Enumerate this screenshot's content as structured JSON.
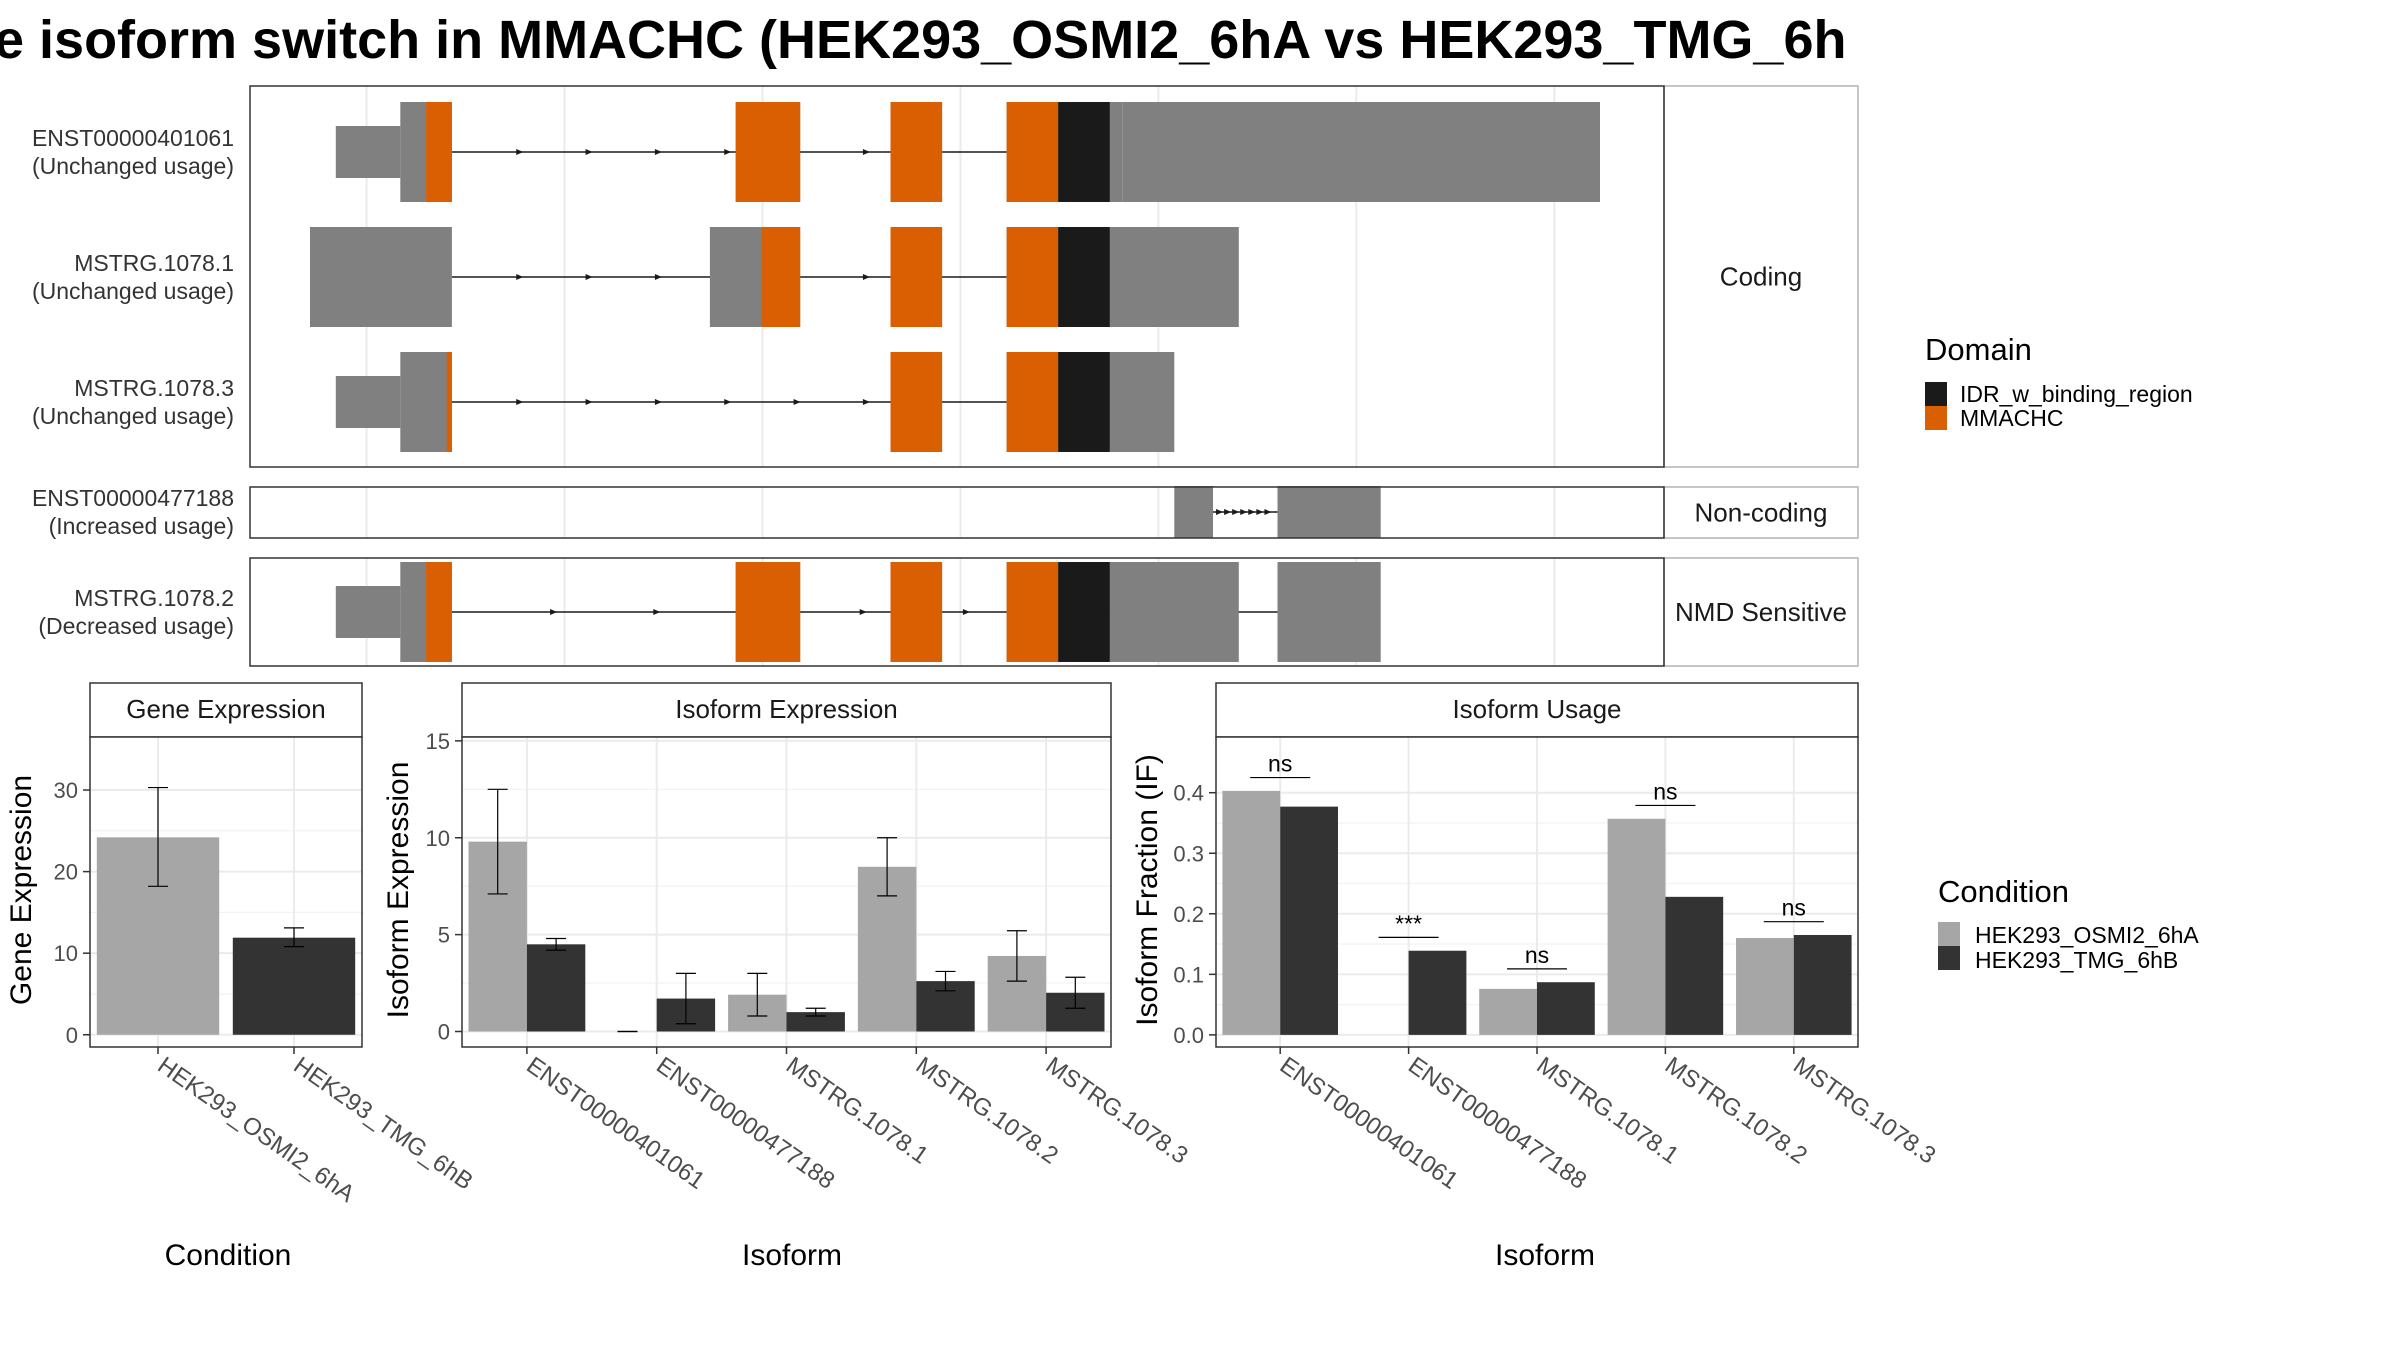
{
  "title": "e isoform switch in MMACHC (HEK293_OSMI2_6hA vs HEK293_TMG_6h",
  "colors": {
    "exon": "#808080",
    "mmachc": "#D95F02",
    "idr": "#1A1A1A",
    "cond1": "#A6A6A6",
    "cond2": "#333333",
    "strip_bg": "#FFFFFF",
    "grid": "#EBEBEB"
  },
  "structure_panel": {
    "x_domain": [
      0,
      100
    ],
    "rows": [
      {
        "id": "ENST00000401061",
        "usage": "(Unchanged usage)",
        "group": "Coding",
        "exons": [
          [
            2,
            7,
            0
          ],
          [
            7,
            9,
            1
          ],
          [
            9,
            11,
            1
          ],
          [
            33,
            38,
            1
          ],
          [
            45,
            49,
            1
          ],
          [
            54,
            58,
            1
          ],
          [
            58,
            62,
            1
          ],
          [
            62,
            63,
            1
          ],
          [
            63,
            100,
            1
          ]
        ],
        "domains": [
          [
            9,
            11,
            "mmachc"
          ],
          [
            33,
            38,
            "mmachc"
          ],
          [
            45,
            49,
            "mmachc"
          ],
          [
            54,
            58,
            "mmachc"
          ],
          [
            58,
            62,
            "idr"
          ]
        ],
        "intron_from": 11,
        "intron_to": 54
      },
      {
        "id": "MSTRG.1078.1",
        "usage": "(Unchanged usage)",
        "group": "Coding",
        "exons": [
          [
            0,
            11,
            1
          ],
          [
            31,
            35,
            1
          ],
          [
            35,
            38,
            1
          ],
          [
            45,
            49,
            1
          ],
          [
            54,
            58,
            1
          ],
          [
            58,
            62,
            1
          ],
          [
            62,
            72,
            1
          ]
        ],
        "domains": [
          [
            35,
            38,
            "mmachc"
          ],
          [
            45,
            49,
            "mmachc"
          ],
          [
            54,
            58,
            "mmachc"
          ],
          [
            58,
            62,
            "idr"
          ]
        ],
        "intron_from": 11,
        "intron_to": 54
      },
      {
        "id": "MSTRG.1078.3",
        "usage": "(Unchanged usage)",
        "group": "Coding",
        "exons": [
          [
            2,
            7,
            0
          ],
          [
            7,
            11,
            1
          ],
          [
            45,
            49,
            1
          ],
          [
            54,
            58,
            1
          ],
          [
            58,
            62,
            1
          ],
          [
            62,
            67,
            1
          ]
        ],
        "domains": [
          [
            10.6,
            11,
            "mmachc"
          ],
          [
            45,
            49,
            "mmachc"
          ],
          [
            54,
            58,
            "mmachc"
          ],
          [
            58,
            62,
            "idr"
          ]
        ],
        "intron_from": 11,
        "intron_to": 54
      },
      {
        "id": "ENST00000477188",
        "usage": "(Increased usage)",
        "group": "Non-coding",
        "exons": [
          [
            67,
            70,
            0
          ],
          [
            75,
            83,
            0
          ]
        ],
        "domains": [],
        "intron_from": 70,
        "intron_to": 75
      },
      {
        "id": "MSTRG.1078.2",
        "usage": "(Decreased usage)",
        "group": "NMD Sensitive",
        "exons": [
          [
            2,
            7,
            0
          ],
          [
            7,
            9,
            1
          ],
          [
            9,
            11,
            1
          ],
          [
            33,
            38,
            1
          ],
          [
            45,
            49,
            1
          ],
          [
            54,
            58,
            1
          ],
          [
            58,
            62,
            1
          ],
          [
            62,
            72,
            1
          ],
          [
            75,
            83,
            1
          ]
        ],
        "domains": [
          [
            9,
            11,
            "mmachc"
          ],
          [
            33,
            38,
            "mmachc"
          ],
          [
            45,
            49,
            "mmachc"
          ],
          [
            54,
            58,
            "mmachc"
          ],
          [
            58,
            62,
            "idr"
          ]
        ],
        "intron_from": 11,
        "intron_to": 75
      }
    ],
    "groups": [
      "Coding",
      "Non-coding",
      "NMD Sensitive"
    ]
  },
  "domain_legend": {
    "title": "Domain",
    "items": [
      {
        "label": "IDR_w_binding_region",
        "color_key": "idr"
      },
      {
        "label": "MMACHC",
        "color_key": "mmachc"
      }
    ]
  },
  "condition_legend": {
    "title": "Condition",
    "items": [
      {
        "label": "HEK293_OSMI2_6hA",
        "color_key": "cond1"
      },
      {
        "label": "HEK293_TMG_6hB",
        "color_key": "cond2"
      }
    ]
  },
  "chart_data": [
    {
      "type": "bar",
      "title": "Gene Expression",
      "xlabel": "Condition",
      "ylabel": "Gene Expression",
      "categories": [
        "HEK293_OSMI2_6hA",
        "HEK293_TMG_6hB"
      ],
      "values": [
        24.2,
        11.9
      ],
      "error_low": [
        18.2,
        10.8
      ],
      "error_high": [
        30.3,
        13.1
      ],
      "ylim": [
        -1.5,
        36.5
      ],
      "yticks": [
        0,
        10,
        20,
        30
      ]
    },
    {
      "type": "bar",
      "title": "Isoform Expression",
      "xlabel": "Isoform",
      "ylabel": "Isoform Expression",
      "categories": [
        "ENST00000401061",
        "ENST00000477188",
        "MSTRG.1078.1",
        "MSTRG.1078.2",
        "MSTRG.1078.3"
      ],
      "series": [
        {
          "name": "HEK293_OSMI2_6hA",
          "values": [
            9.8,
            0,
            1.9,
            8.5,
            3.9
          ],
          "error_low": [
            7.1,
            0,
            0.8,
            7.0,
            2.6
          ],
          "error_high": [
            12.5,
            0,
            3.0,
            10.0,
            5.2
          ]
        },
        {
          "name": "HEK293_TMG_6hB",
          "values": [
            4.5,
            1.7,
            1.0,
            2.6,
            2.0
          ],
          "error_low": [
            4.2,
            0.4,
            0.8,
            2.1,
            1.2
          ],
          "error_high": [
            4.8,
            3.0,
            1.2,
            3.1,
            2.8
          ]
        }
      ],
      "ylim": [
        -0.8,
        15.2
      ],
      "yticks": [
        0,
        5,
        10,
        15
      ]
    },
    {
      "type": "bar",
      "title": "Isoform Usage",
      "xlabel": "Isoform",
      "ylabel": "Isoform Fraction (IF)",
      "categories": [
        "ENST00000401061",
        "ENST00000477188",
        "MSTRG.1078.1",
        "MSTRG.1078.2",
        "MSTRG.1078.3"
      ],
      "series": [
        {
          "name": "HEK293_OSMI2_6hA",
          "values": [
            0.403,
            0.0,
            0.076,
            0.357,
            0.16
          ]
        },
        {
          "name": "HEK293_TMG_6hB",
          "values": [
            0.377,
            0.139,
            0.087,
            0.228,
            0.165
          ]
        }
      ],
      "significance": [
        "ns",
        "***",
        "ns",
        "ns",
        "ns"
      ],
      "sig_y": [
        0.425,
        0.161,
        0.109,
        0.379,
        0.187
      ],
      "ylim": [
        -0.02,
        0.492
      ],
      "yticks": [
        0.0,
        0.1,
        0.2,
        0.3,
        0.4
      ],
      "ytick_labels": [
        "0.0",
        "0.1",
        "0.2",
        "0.3",
        "0.4"
      ]
    }
  ]
}
